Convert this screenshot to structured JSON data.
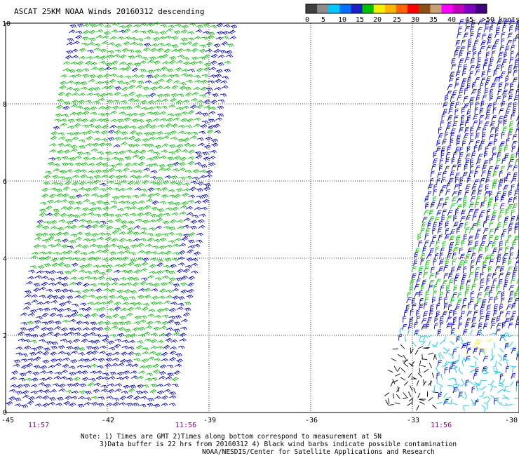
{
  "title": "ASCAT 25KM NOAA Winds 20160312 descending",
  "legend": {
    "colors": [
      "#404040",
      "#8c8c8c",
      "#00c8ff",
      "#0070ff",
      "#1e1ec8",
      "#00c000",
      "#f5f000",
      "#ffb400",
      "#ff6400",
      "#ff0000",
      "#8c5014",
      "#c8a078",
      "#ff00ff",
      "#c000c0",
      "#8000c0",
      "#400080"
    ],
    "labels": [
      "0",
      "5",
      "10",
      "15",
      "20",
      "25",
      "30",
      "35",
      "40",
      "45",
      ">50 knots"
    ]
  },
  "axes": {
    "x_ticks": [
      "-45",
      "-42",
      "-39",
      "-36",
      "-33",
      "-30"
    ],
    "y_ticks": [
      "0",
      "2",
      "4",
      "6",
      "8",
      "10"
    ]
  },
  "times": [
    "11:57",
    "11:56",
    "11:56"
  ],
  "notes": {
    "line1": "Note: 1) Times are GMT 2)Times along bottom correspond to measurement at 5N",
    "line2": "3)Data buffer is 22 hrs from 20160312 4) Black wind barbs indicate possible contamination",
    "line3": "NOAA/NESDIS/Center for Satellite Applications and Research"
  },
  "swaths": {
    "left": {
      "dominant_color": "#00c000",
      "edge_color": "#0000c8",
      "lower_color": "#0000c8"
    },
    "right": {
      "dominant_color": "#0000c8",
      "mid_color": "#00c000",
      "lower_color": "#00d0e0",
      "contaminated_color": "#000000",
      "highlight_color": "#f0f000"
    }
  }
}
